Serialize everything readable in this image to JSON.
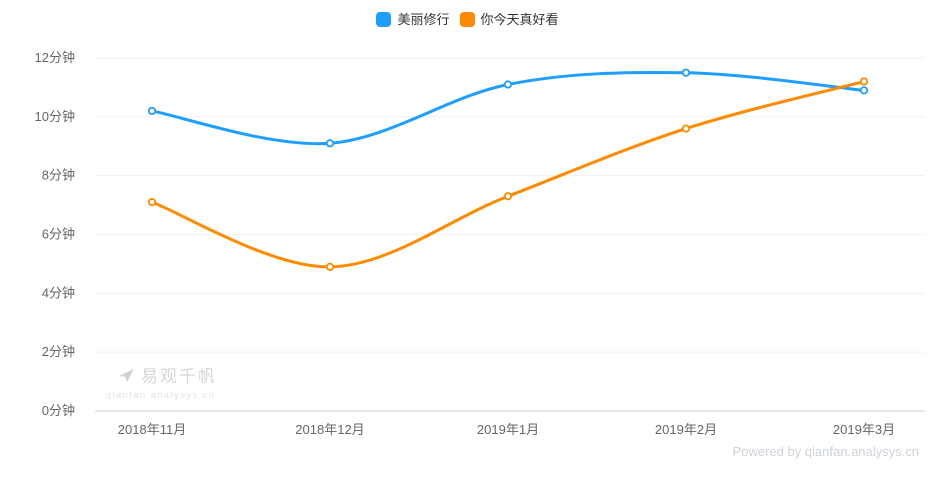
{
  "chart_data": {
    "type": "line",
    "title": "",
    "categories": [
      "2018年11月",
      "2018年12月",
      "2019年1月",
      "2019年2月",
      "2019年3月"
    ],
    "series": [
      {
        "name": "美丽修行",
        "color": "#1e9fff",
        "values": [
          10.2,
          9.1,
          11.1,
          11.5,
          10.9
        ]
      },
      {
        "name": "你今天真好看",
        "color": "#ff8a00",
        "values": [
          7.1,
          4.9,
          7.3,
          9.6,
          11.2
        ]
      }
    ],
    "xlabel": "",
    "ylabel": "",
    "unit": "分钟",
    "ylim": [
      0,
      12
    ],
    "y_ticks": [
      0,
      2,
      4,
      6,
      8,
      10,
      12
    ],
    "y_tick_labels": [
      "0分钟",
      "2分钟",
      "4分钟",
      "6分钟",
      "8分钟",
      "10分钟",
      "12分钟"
    ],
    "grid": "horizontal-only",
    "smooth": true,
    "legend_position": "top-center",
    "marker": "hollow-circle"
  },
  "legend": {
    "items": [
      {
        "label": "美丽修行",
        "color": "#1e9fff"
      },
      {
        "label": "你今天真好看",
        "color": "#ff8a00"
      }
    ]
  },
  "watermark": {
    "title": "易观千帆",
    "subtitle": "qianfan.analysys.cn"
  },
  "footer": {
    "powered_by": "Powered by qianfan.analysys.cn"
  },
  "colors": {
    "grid_line": "#f0f0f0",
    "axis_line": "#cccccc",
    "axis_label": "#666666",
    "legend_text": "#333333",
    "watermark": "#d7d7d7",
    "powered_by": "#ced3da",
    "background": "#ffffff"
  }
}
